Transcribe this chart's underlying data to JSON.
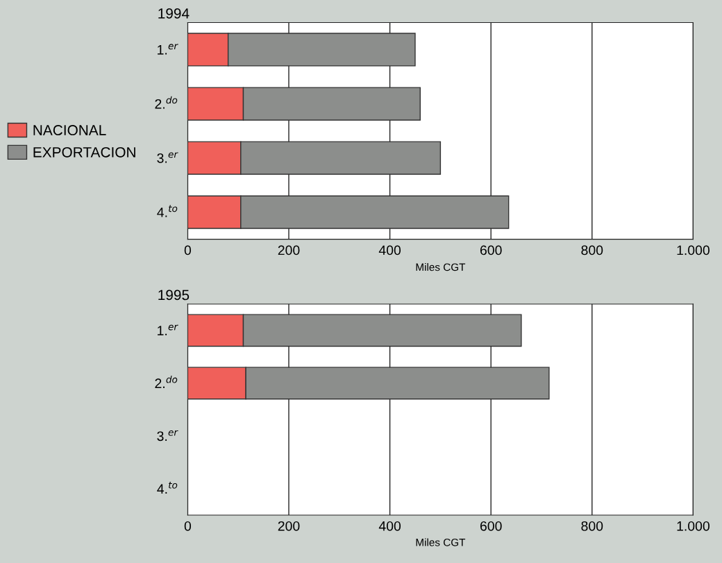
{
  "chart_data": [
    {
      "type": "bar",
      "orientation": "horizontal",
      "stacked": true,
      "title": "1994",
      "xlabel": "Miles CGT",
      "categories": [
        "1.$^{er}$",
        "2.$^{do}$",
        "3.$^{er}$",
        "4.$^{to}$"
      ],
      "xlim": [
        0,
        1000
      ],
      "xticks": [
        0,
        200,
        400,
        600,
        800,
        {
          "value": 1000,
          "label": "1.000"
        }
      ],
      "grid": "x",
      "legend": "left",
      "series": [
        {
          "name": "NACIONAL",
          "color": "#f0605a",
          "values": [
            80,
            110,
            105,
            105
          ]
        },
        {
          "name": "EXPORTACION",
          "color": "#8c8e8c",
          "values": [
            370,
            350,
            395,
            530
          ]
        }
      ]
    },
    {
      "type": "bar",
      "orientation": "horizontal",
      "stacked": true,
      "title": "1995",
      "xlabel": "Miles CGT",
      "categories": [
        "1.$^{er}$",
        "2.$^{do}$",
        "3.$^{er}$",
        "4.$^{to}$"
      ],
      "xlim": [
        0,
        1000
      ],
      "xticks": [
        0,
        200,
        400,
        600,
        800,
        {
          "value": 1000,
          "label": "1.000"
        }
      ],
      "grid": "x",
      "series": [
        {
          "color": "#f0605a",
          "values": [
            110,
            115,
            null,
            null
          ]
        },
        {
          "color": "#8c8e8c",
          "values": [
            550,
            600,
            null,
            null
          ]
        }
      ]
    }
  ]
}
